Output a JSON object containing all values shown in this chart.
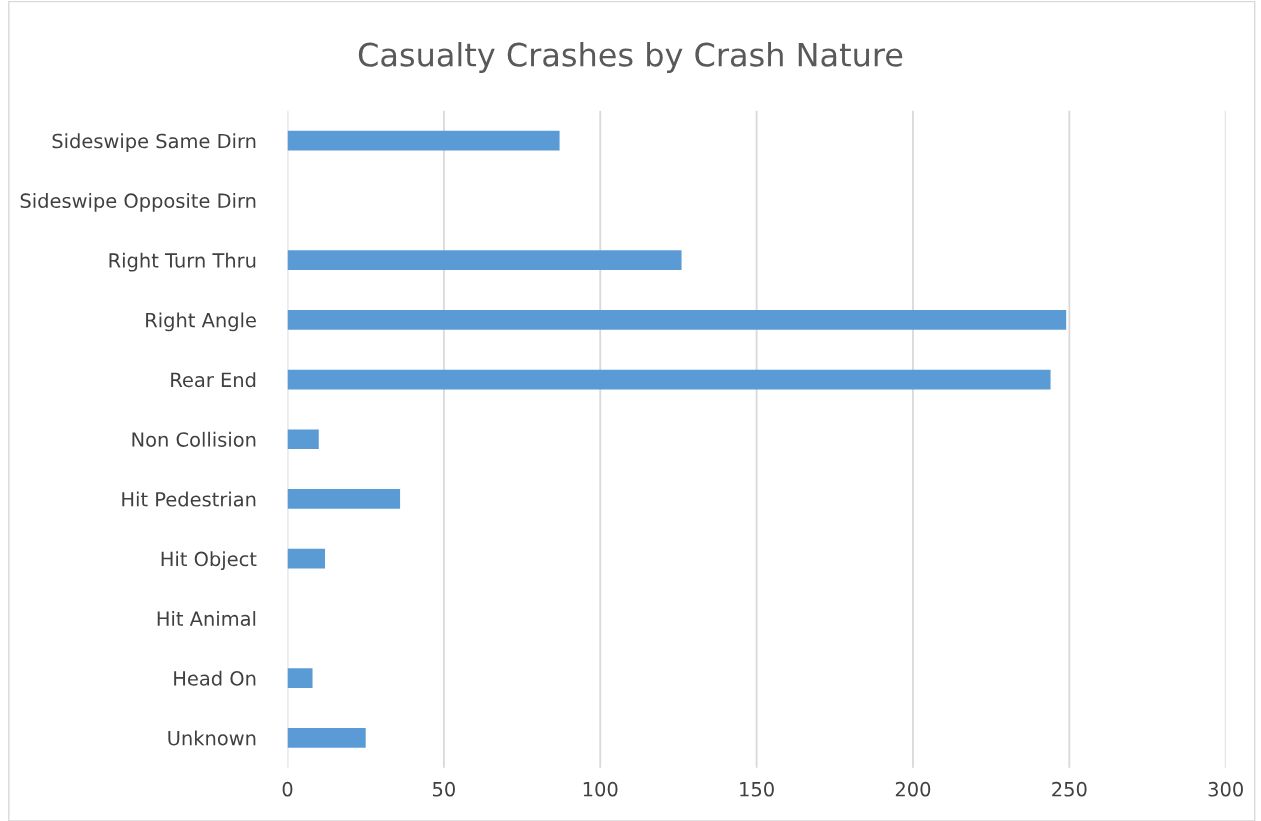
{
  "chart_data": {
    "type": "bar",
    "orientation": "horizontal",
    "title": "Casualty Crashes by Crash Nature",
    "categories": [
      "Sideswipe Same Dirn",
      "Sideswipe Opposite Dirn",
      "Right Turn Thru",
      "Right Angle",
      "Rear End",
      "Non Collision",
      "Hit Pedestrian",
      "Hit Object",
      "Hit Animal",
      "Head On",
      "Unknown"
    ],
    "values": [
      87,
      0,
      126,
      249,
      244,
      10,
      36,
      12,
      0,
      8,
      25
    ],
    "color": "#5b9bd5",
    "xlim": [
      0,
      300
    ],
    "xticks": [
      0,
      50,
      100,
      150,
      200,
      250,
      300
    ],
    "grid": "x",
    "legend": false
  }
}
